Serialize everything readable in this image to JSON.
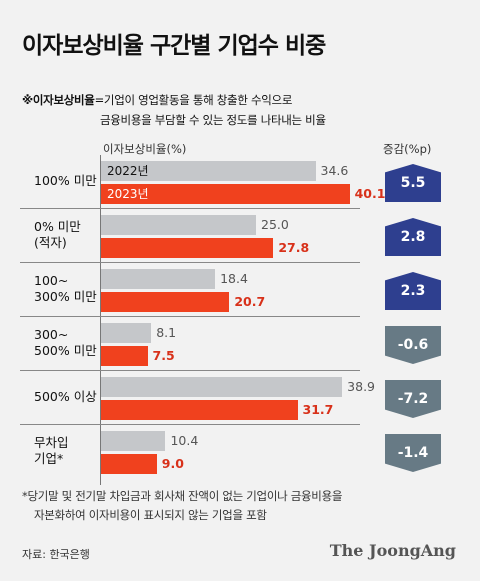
{
  "title": "이자보상비율 구간별 기업수 비중",
  "note": {
    "prefix": "※",
    "term": "이자보상비율",
    "line1_rest": "=기업이 영업활동을 통해 창출한 수익으로",
    "line2": "금융비용을 부담할 수 있는 정도를 나타내는 비율"
  },
  "headers": {
    "ratio": "이자보상비율(%)",
    "change": "증감(%p)"
  },
  "legend": {
    "y2022": "2022년",
    "y2023": "2023년"
  },
  "colors": {
    "y2022": "#c5c7ca",
    "y2023": "#f0411e",
    "increase": "#2e3f8f",
    "decrease": "#677a85"
  },
  "chart_data": {
    "type": "bar",
    "orientation": "horizontal",
    "categories": [
      "100% 미만",
      "0% 미만 (적자)",
      "100~ 300% 미만",
      "300~ 500% 미만",
      "500% 이상",
      "무차입 기업*"
    ],
    "category_lines": [
      [
        "100% 미만"
      ],
      [
        "0% 미만",
        "(적자)"
      ],
      [
        "100~",
        "300% 미만"
      ],
      [
        "300~",
        "500% 미만"
      ],
      [
        "500% 이상"
      ],
      [
        "무차입",
        "기업*"
      ]
    ],
    "series": [
      {
        "name": "2022년",
        "values": [
          34.6,
          25.0,
          18.4,
          8.1,
          38.9,
          10.4
        ],
        "labels": [
          "34.6",
          "25.0",
          "18.4",
          "8.1",
          "38.9",
          "10.4"
        ]
      },
      {
        "name": "2023년",
        "values": [
          40.1,
          27.8,
          20.7,
          7.5,
          31.7,
          9.0
        ],
        "labels": [
          "40.1",
          "27.8",
          "20.7",
          "7.5",
          "31.7",
          "9.0"
        ]
      }
    ],
    "changes": [
      5.5,
      2.8,
      2.3,
      -0.6,
      -7.2,
      -1.4
    ],
    "change_labels": [
      "5.5",
      "2.8",
      "2.3",
      "-0.6",
      "-7.2",
      "-1.4"
    ],
    "xlabel": "이자보상비율(%)",
    "ylabel": ""
  },
  "footnote": {
    "line1": "*당기말 및 전기말 차입금과 회사채 잔액이 없는 기업이나 금융비용을",
    "line2": "자본화하여 이자비용이 표시되지 않는 기업을 포함"
  },
  "source": "자료: 한국은행",
  "brand": "The JoongAng"
}
